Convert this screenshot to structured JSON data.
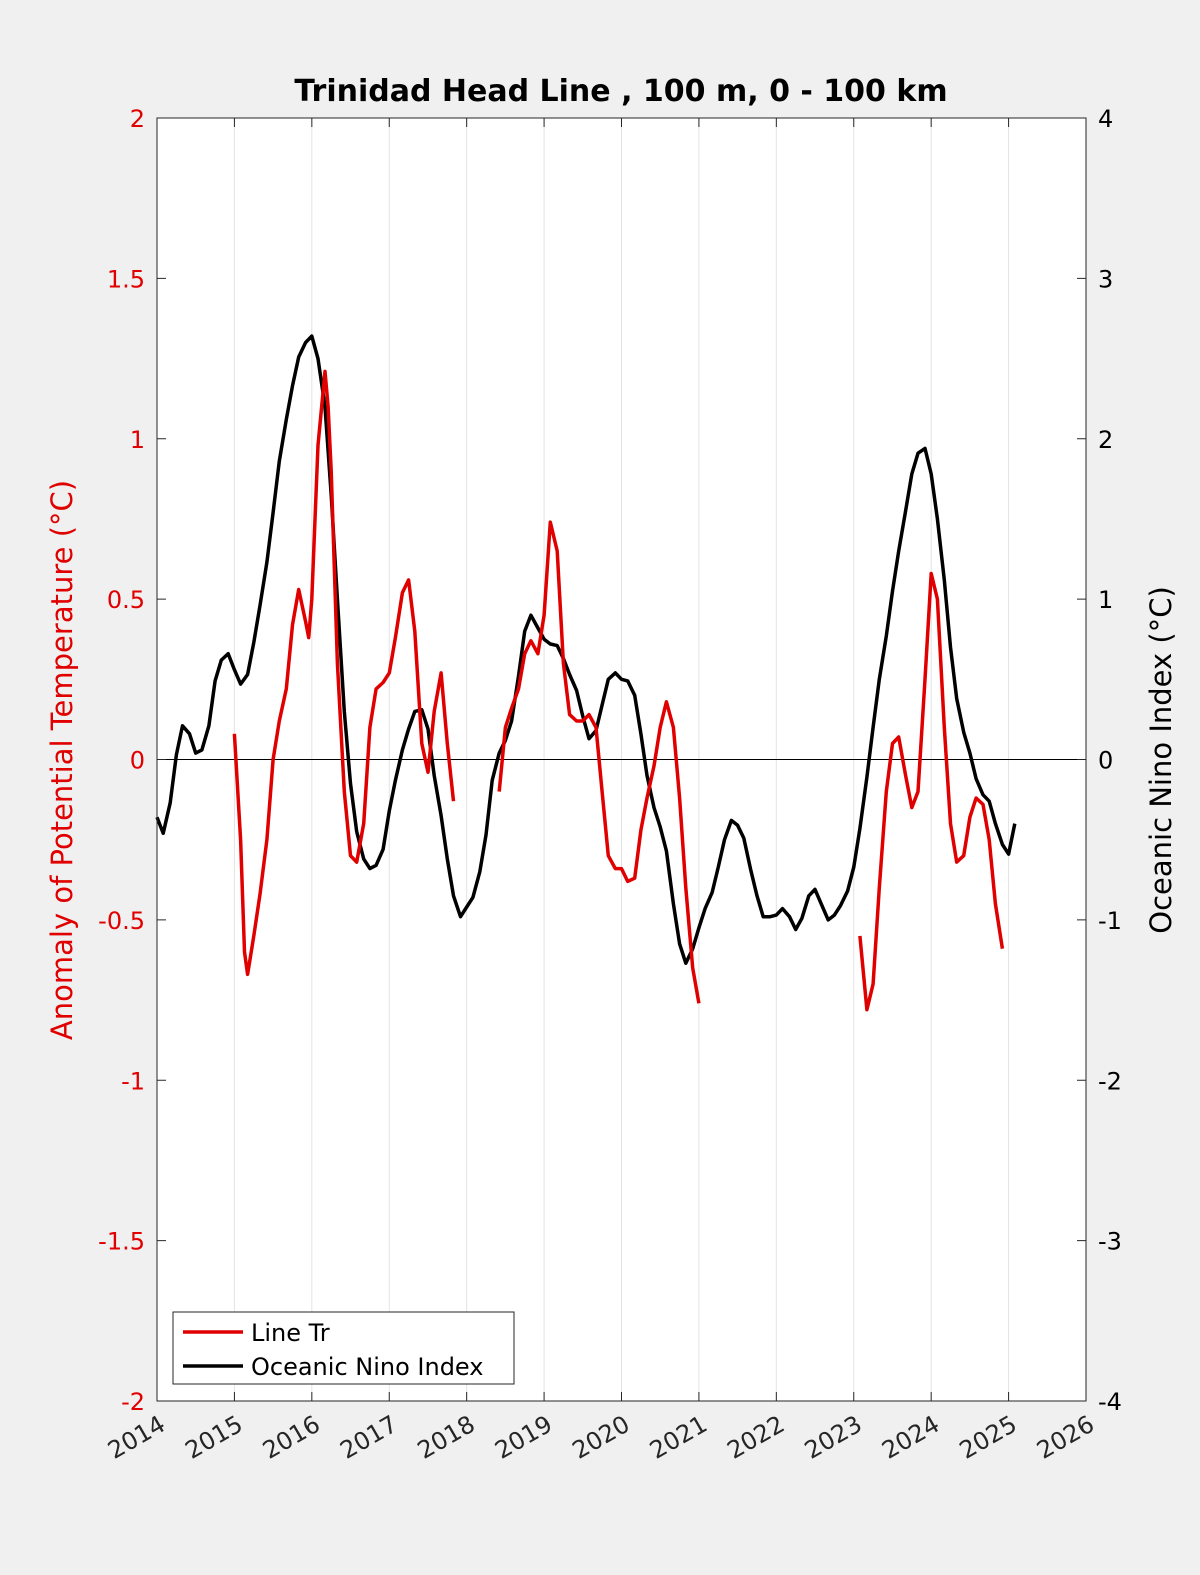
{
  "chart_data": {
    "type": "line",
    "title": "Trinidad Head Line , 100 m, 0 - 100 km",
    "xlabel": "",
    "ylabel_left": "Anomaly of Potential Temperature (°C)",
    "ylabel_right": "Oceanic Nino Index (°C)",
    "xlim": [
      2014,
      2026
    ],
    "ylim_left": [
      -2,
      2
    ],
    "ylim_right": [
      -4,
      4
    ],
    "xticks": [
      "2014",
      "2015",
      "2016",
      "2017",
      "2018",
      "2019",
      "2020",
      "2021",
      "2022",
      "2023",
      "2024",
      "2025",
      "2026"
    ],
    "yticks_left": [
      "-2",
      "-1.5",
      "-1",
      "-0.5",
      "0",
      "0.5",
      "1",
      "1.5",
      "2"
    ],
    "yticks_right": [
      "-4",
      "-3",
      "-2",
      "-1",
      "0",
      "1",
      "2",
      "3",
      "4"
    ],
    "grid": "vertical",
    "zero_line": true,
    "legend_position": "bottom-left",
    "colors": {
      "line_tr": "#e00000",
      "oni": "#000000",
      "left_axis": "#e00000",
      "right_axis": "#000000"
    },
    "series": [
      {
        "name": "Line Tr",
        "axis": "left",
        "segments": [
          [
            [
              2015.0,
              0.08
            ],
            [
              2015.08,
              -0.25
            ],
            [
              2015.13,
              -0.6
            ],
            [
              2015.17,
              -0.67
            ],
            [
              2015.25,
              -0.55
            ],
            [
              2015.33,
              -0.42
            ],
            [
              2015.42,
              -0.25
            ],
            [
              2015.5,
              0.0
            ],
            [
              2015.58,
              0.12
            ],
            [
              2015.67,
              0.22
            ],
            [
              2015.75,
              0.42
            ],
            [
              2015.83,
              0.53
            ],
            [
              2015.92,
              0.43
            ],
            [
              2015.96,
              0.38
            ],
            [
              2016.0,
              0.5
            ],
            [
              2016.08,
              0.98
            ],
            [
              2016.17,
              1.21
            ],
            [
              2016.21,
              1.1
            ],
            [
              2016.25,
              0.9
            ],
            [
              2016.33,
              0.3
            ],
            [
              2016.42,
              -0.1
            ],
            [
              2016.5,
              -0.3
            ],
            [
              2016.58,
              -0.32
            ],
            [
              2016.67,
              -0.2
            ],
            [
              2016.75,
              0.1
            ],
            [
              2016.83,
              0.22
            ],
            [
              2016.92,
              0.24
            ],
            [
              2017.0,
              0.27
            ],
            [
              2017.08,
              0.38
            ],
            [
              2017.17,
              0.52
            ],
            [
              2017.25,
              0.56
            ],
            [
              2017.33,
              0.4
            ],
            [
              2017.42,
              0.05
            ],
            [
              2017.5,
              -0.04
            ],
            [
              2017.58,
              0.15
            ],
            [
              2017.67,
              0.27
            ],
            [
              2017.75,
              0.05
            ],
            [
              2017.83,
              -0.13
            ]
          ],
          [
            [
              2018.42,
              -0.1
            ],
            [
              2018.5,
              0.1
            ],
            [
              2018.58,
              0.16
            ],
            [
              2018.67,
              0.22
            ],
            [
              2018.75,
              0.33
            ],
            [
              2018.83,
              0.37
            ],
            [
              2018.92,
              0.33
            ],
            [
              2019.0,
              0.45
            ],
            [
              2019.08,
              0.74
            ],
            [
              2019.17,
              0.65
            ],
            [
              2019.25,
              0.3
            ],
            [
              2019.33,
              0.14
            ],
            [
              2019.42,
              0.12
            ],
            [
              2019.5,
              0.12
            ],
            [
              2019.58,
              0.14
            ],
            [
              2019.67,
              0.1
            ],
            [
              2019.75,
              -0.1
            ],
            [
              2019.83,
              -0.3
            ],
            [
              2019.92,
              -0.34
            ],
            [
              2020.0,
              -0.34
            ],
            [
              2020.08,
              -0.38
            ],
            [
              2020.17,
              -0.37
            ],
            [
              2020.25,
              -0.22
            ],
            [
              2020.33,
              -0.12
            ],
            [
              2020.42,
              -0.02
            ],
            [
              2020.5,
              0.1
            ],
            [
              2020.58,
              0.18
            ],
            [
              2020.67,
              0.1
            ],
            [
              2020.75,
              -0.12
            ],
            [
              2020.83,
              -0.4
            ],
            [
              2020.92,
              -0.65
            ],
            [
              2021.0,
              -0.76
            ]
          ],
          [
            [
              2023.08,
              -0.55
            ],
            [
              2023.17,
              -0.78
            ],
            [
              2023.25,
              -0.7
            ],
            [
              2023.33,
              -0.4
            ],
            [
              2023.42,
              -0.1
            ],
            [
              2023.5,
              0.05
            ],
            [
              2023.58,
              0.07
            ],
            [
              2023.67,
              -0.05
            ],
            [
              2023.75,
              -0.15
            ],
            [
              2023.83,
              -0.1
            ],
            [
              2023.92,
              0.25
            ],
            [
              2024.0,
              0.58
            ],
            [
              2024.08,
              0.5
            ],
            [
              2024.17,
              0.1
            ],
            [
              2024.25,
              -0.2
            ],
            [
              2024.33,
              -0.32
            ],
            [
              2024.42,
              -0.3
            ],
            [
              2024.5,
              -0.18
            ],
            [
              2024.58,
              -0.12
            ],
            [
              2024.67,
              -0.14
            ],
            [
              2024.75,
              -0.25
            ],
            [
              2024.83,
              -0.45
            ],
            [
              2024.92,
              -0.59
            ]
          ]
        ]
      },
      {
        "name": "Oceanic Nino Index",
        "axis": "right",
        "segments": [
          [
            [
              2014.0,
              -0.36
            ],
            [
              2014.08,
              -0.46
            ],
            [
              2014.17,
              -0.27
            ],
            [
              2014.25,
              0.03
            ],
            [
              2014.33,
              0.21
            ],
            [
              2014.42,
              0.16
            ],
            [
              2014.5,
              0.04
            ],
            [
              2014.58,
              0.06
            ],
            [
              2014.67,
              0.21
            ],
            [
              2014.75,
              0.49
            ],
            [
              2014.83,
              0.62
            ],
            [
              2014.92,
              0.66
            ],
            [
              2015.0,
              0.56
            ],
            [
              2015.08,
              0.47
            ],
            [
              2015.17,
              0.53
            ],
            [
              2015.25,
              0.73
            ],
            [
              2015.33,
              0.96
            ],
            [
              2015.42,
              1.23
            ],
            [
              2015.5,
              1.54
            ],
            [
              2015.58,
              1.86
            ],
            [
              2015.67,
              2.12
            ],
            [
              2015.75,
              2.33
            ],
            [
              2015.83,
              2.51
            ],
            [
              2015.92,
              2.6
            ],
            [
              2016.0,
              2.64
            ],
            [
              2016.08,
              2.5
            ],
            [
              2016.17,
              2.2
            ],
            [
              2016.25,
              1.65
            ],
            [
              2016.33,
              1.0
            ],
            [
              2016.42,
              0.3
            ],
            [
              2016.5,
              -0.15
            ],
            [
              2016.58,
              -0.45
            ],
            [
              2016.67,
              -0.62
            ],
            [
              2016.75,
              -0.68
            ],
            [
              2016.83,
              -0.66
            ],
            [
              2016.92,
              -0.56
            ],
            [
              2017.0,
              -0.32
            ],
            [
              2017.08,
              -0.13
            ],
            [
              2017.17,
              0.06
            ],
            [
              2017.25,
              0.19
            ],
            [
              2017.33,
              0.3
            ],
            [
              2017.42,
              0.31
            ],
            [
              2017.5,
              0.19
            ],
            [
              2017.58,
              -0.1
            ],
            [
              2017.67,
              -0.35
            ],
            [
              2017.75,
              -0.62
            ],
            [
              2017.83,
              -0.85
            ],
            [
              2017.92,
              -0.98
            ],
            [
              2018.0,
              -0.92
            ],
            [
              2018.08,
              -0.86
            ],
            [
              2018.17,
              -0.7
            ],
            [
              2018.25,
              -0.47
            ],
            [
              2018.33,
              -0.13
            ],
            [
              2018.42,
              0.04
            ],
            [
              2018.5,
              0.12
            ],
            [
              2018.58,
              0.24
            ],
            [
              2018.67,
              0.52
            ],
            [
              2018.75,
              0.8
            ],
            [
              2018.83,
              0.9
            ],
            [
              2018.92,
              0.82
            ],
            [
              2019.0,
              0.75
            ],
            [
              2019.08,
              0.72
            ],
            [
              2019.17,
              0.71
            ],
            [
              2019.25,
              0.63
            ],
            [
              2019.33,
              0.53
            ],
            [
              2019.42,
              0.43
            ],
            [
              2019.5,
              0.27
            ],
            [
              2019.58,
              0.13
            ],
            [
              2019.67,
              0.18
            ],
            [
              2019.75,
              0.34
            ],
            [
              2019.83,
              0.5
            ],
            [
              2019.92,
              0.54
            ],
            [
              2020.0,
              0.5
            ],
            [
              2020.08,
              0.49
            ],
            [
              2020.17,
              0.4
            ],
            [
              2020.25,
              0.16
            ],
            [
              2020.33,
              -0.1
            ],
            [
              2020.42,
              -0.3
            ],
            [
              2020.5,
              -0.42
            ],
            [
              2020.58,
              -0.57
            ],
            [
              2020.67,
              -0.9
            ],
            [
              2020.75,
              -1.15
            ],
            [
              2020.83,
              -1.27
            ],
            [
              2020.92,
              -1.18
            ],
            [
              2021.0,
              -1.05
            ],
            [
              2021.08,
              -0.93
            ],
            [
              2021.17,
              -0.83
            ],
            [
              2021.25,
              -0.67
            ],
            [
              2021.33,
              -0.5
            ],
            [
              2021.42,
              -0.38
            ],
            [
              2021.5,
              -0.41
            ],
            [
              2021.58,
              -0.49
            ],
            [
              2021.67,
              -0.69
            ],
            [
              2021.75,
              -0.85
            ],
            [
              2021.83,
              -0.98
            ],
            [
              2021.92,
              -0.98
            ],
            [
              2022.0,
              -0.97
            ],
            [
              2022.08,
              -0.93
            ],
            [
              2022.17,
              -0.98
            ],
            [
              2022.25,
              -1.06
            ],
            [
              2022.33,
              -0.99
            ],
            [
              2022.42,
              -0.85
            ],
            [
              2022.5,
              -0.81
            ],
            [
              2022.58,
              -0.9
            ],
            [
              2022.67,
              -1.0
            ],
            [
              2022.75,
              -0.97
            ],
            [
              2022.83,
              -0.91
            ],
            [
              2022.92,
              -0.82
            ],
            [
              2023.0,
              -0.67
            ],
            [
              2023.08,
              -0.43
            ],
            [
              2023.17,
              -0.11
            ],
            [
              2023.25,
              0.2
            ],
            [
              2023.33,
              0.5
            ],
            [
              2023.42,
              0.77
            ],
            [
              2023.5,
              1.05
            ],
            [
              2023.58,
              1.3
            ],
            [
              2023.67,
              1.55
            ],
            [
              2023.75,
              1.78
            ],
            [
              2023.83,
              1.91
            ],
            [
              2023.92,
              1.94
            ],
            [
              2024.0,
              1.78
            ],
            [
              2024.08,
              1.5
            ],
            [
              2024.17,
              1.12
            ],
            [
              2024.25,
              0.7
            ],
            [
              2024.33,
              0.38
            ],
            [
              2024.42,
              0.17
            ],
            [
              2024.5,
              0.04
            ],
            [
              2024.58,
              -0.12
            ],
            [
              2024.67,
              -0.22
            ],
            [
              2024.75,
              -0.26
            ],
            [
              2024.83,
              -0.4
            ],
            [
              2024.92,
              -0.53
            ],
            [
              2025.0,
              -0.59
            ],
            [
              2025.08,
              -0.4
            ]
          ]
        ]
      }
    ],
    "legend": [
      "Line Tr",
      "Oceanic Nino Index"
    ]
  }
}
